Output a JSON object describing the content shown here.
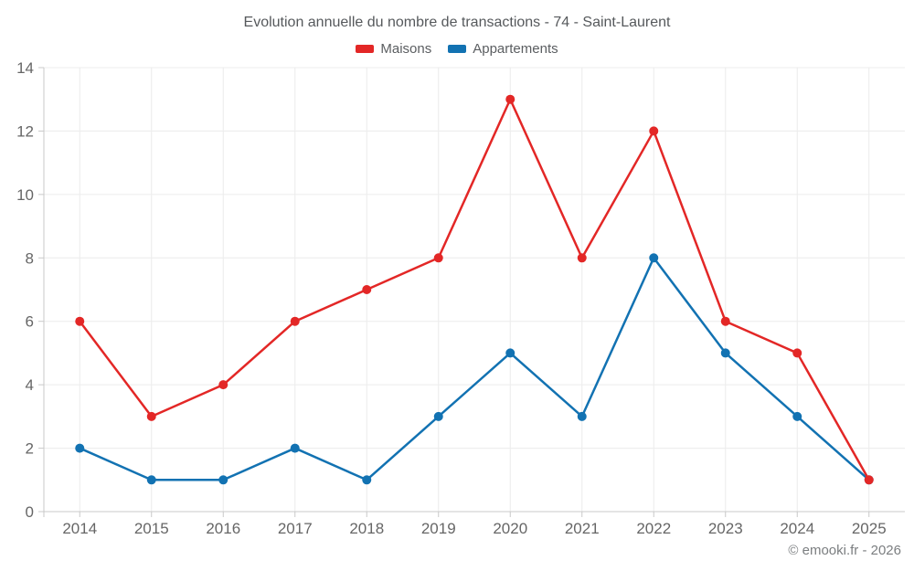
{
  "header": {
    "title": "Evolution annuelle du nombre de transactions - 74 - Saint-Laurent"
  },
  "footer": {
    "credit": "© emooki.fr - 2026"
  },
  "chart_data": {
    "type": "line",
    "title": "Evolution annuelle du nombre de transactions - 74 - Saint-Laurent",
    "categories": [
      "2014",
      "2015",
      "2016",
      "2017",
      "2018",
      "2019",
      "2020",
      "2021",
      "2022",
      "2023",
      "2024",
      "2025"
    ],
    "series": [
      {
        "name": "Maisons",
        "color": "#e32726",
        "values": [
          6,
          3,
          4,
          6,
          7,
          8,
          13,
          8,
          12,
          6,
          5,
          1
        ]
      },
      {
        "name": "Appartements",
        "color": "#1272b2",
        "values": [
          2,
          1,
          1,
          2,
          1,
          3,
          5,
          3,
          8,
          5,
          3,
          1
        ]
      }
    ],
    "xlabel": "",
    "ylabel": "",
    "ylim": [
      0,
      14
    ],
    "y_ticks": [
      0,
      2,
      4,
      6,
      8,
      10,
      12,
      14
    ],
    "grid": true,
    "legend_position": "top",
    "colors": {
      "grid": "#ececec",
      "axis": "#c9c9c9",
      "tick_label": "#666666",
      "title": "#56595c",
      "background": "#ffffff"
    }
  }
}
